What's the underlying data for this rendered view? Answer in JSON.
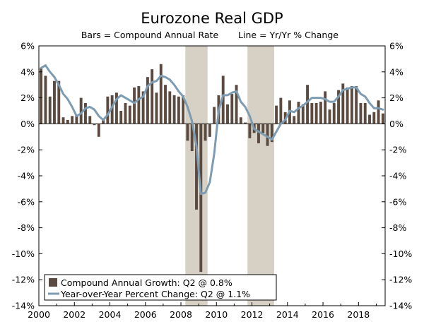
{
  "chart_data": {
    "type": "bar",
    "title": "Eurozone Real GDP",
    "subtitle_left": "Bars = Compound Annual Rate",
    "subtitle_right": "Line = Yr/Yr % Change",
    "ylim": [
      -14,
      6
    ],
    "y_ticks": [
      "6%",
      "4%",
      "2%",
      "0%",
      "-2%",
      "-4%",
      "-6%",
      "-8%",
      "-10%",
      "-12%",
      "-14%"
    ],
    "y_tick_values": [
      6,
      4,
      2,
      0,
      -2,
      -4,
      -6,
      -8,
      -10,
      -12,
      -14
    ],
    "x_ticks": [
      "2000",
      "2002",
      "2004",
      "2006",
      "2008",
      "2010",
      "2012",
      "2014",
      "2016",
      "2018"
    ],
    "x_tick_values": [
      2000,
      2002,
      2004,
      2006,
      2008,
      2010,
      2012,
      2014,
      2016,
      2018
    ],
    "xlim": [
      2000,
      2019.5
    ],
    "recessions": [
      [
        2008.25,
        2009.5
      ],
      [
        2011.75,
        2013.25
      ]
    ],
    "colors": {
      "bars": "#5a4a40",
      "line": "#7d9cb1",
      "recession": "#d6d1c4"
    },
    "legend": {
      "placement": "bottom-left",
      "bars_label": "Compound Annual Growth: Q2 @ 0.8%",
      "line_label": "Year-over-Year Percent Change: Q2 @ 1.1%"
    },
    "series": [
      {
        "name": "Compound Annual Growth: Q2 @ 0.8%",
        "kind": "bar",
        "x": [
          2000.0,
          2000.25,
          2000.5,
          2000.75,
          2001.0,
          2001.25,
          2001.5,
          2001.75,
          2002.0,
          2002.25,
          2002.5,
          2002.75,
          2003.0,
          2003.25,
          2003.5,
          2003.75,
          2004.0,
          2004.25,
          2004.5,
          2004.75,
          2005.0,
          2005.25,
          2005.5,
          2005.75,
          2006.0,
          2006.25,
          2006.5,
          2006.75,
          2007.0,
          2007.25,
          2007.5,
          2007.75,
          2008.0,
          2008.25,
          2008.5,
          2008.75,
          2009.0,
          2009.25,
          2009.5,
          2009.75,
          2010.0,
          2010.25,
          2010.5,
          2010.75,
          2011.0,
          2011.25,
          2011.5,
          2011.75,
          2012.0,
          2012.25,
          2012.5,
          2012.75,
          2013.0,
          2013.25,
          2013.5,
          2013.75,
          2014.0,
          2014.25,
          2014.5,
          2014.75,
          2015.0,
          2015.25,
          2015.5,
          2015.75,
          2016.0,
          2016.25,
          2016.5,
          2016.75,
          2017.0,
          2017.25,
          2017.5,
          2017.75,
          2018.0,
          2018.25,
          2018.5,
          2018.75,
          2019.0,
          2019.25
        ],
        "values": [
          4.3,
          3.7,
          2.1,
          3.3,
          3.3,
          0.5,
          0.3,
          0.6,
          0.7,
          2.0,
          1.6,
          0.6,
          -0.1,
          -1.0,
          0.3,
          2.1,
          2.2,
          2.4,
          1.0,
          1.6,
          1.4,
          2.8,
          2.9,
          2.5,
          3.6,
          4.2,
          2.4,
          4.6,
          3.0,
          2.5,
          2.2,
          2.1,
          2.2,
          -1.3,
          -2.1,
          -6.6,
          -11.4,
          -1.3,
          -1.0,
          1.3,
          2.2,
          3.7,
          1.5,
          2.3,
          3.0,
          0.5,
          0.1,
          -1.1,
          -0.7,
          -1.5,
          -0.7,
          -1.7,
          -1.4,
          1.4,
          2.0,
          0.9,
          1.8,
          0.6,
          1.7,
          1.5,
          3.0,
          1.6,
          1.6,
          1.7,
          2.5,
          1.1,
          1.6,
          2.6,
          3.1,
          2.8,
          2.9,
          2.9,
          1.6,
          1.6,
          0.7,
          0.9,
          1.8,
          0.8
        ]
      },
      {
        "name": "Year-over-Year Percent Change: Q2 @ 1.1%",
        "kind": "line",
        "x": [
          2000.0,
          2000.25,
          2000.5,
          2000.75,
          2001.0,
          2001.25,
          2001.5,
          2001.75,
          2002.0,
          2002.25,
          2002.5,
          2002.75,
          2003.0,
          2003.25,
          2003.5,
          2003.75,
          2004.0,
          2004.25,
          2004.5,
          2004.75,
          2005.0,
          2005.25,
          2005.5,
          2005.75,
          2006.0,
          2006.25,
          2006.5,
          2006.75,
          2007.0,
          2007.25,
          2007.5,
          2007.75,
          2008.0,
          2008.25,
          2008.5,
          2008.75,
          2009.0,
          2009.25,
          2009.5,
          2009.75,
          2010.0,
          2010.25,
          2010.5,
          2010.75,
          2011.0,
          2011.25,
          2011.5,
          2011.75,
          2012.0,
          2012.25,
          2012.5,
          2012.75,
          2013.0,
          2013.25,
          2013.5,
          2013.75,
          2014.0,
          2014.25,
          2014.5,
          2014.75,
          2015.0,
          2015.25,
          2015.5,
          2015.75,
          2016.0,
          2016.25,
          2016.5,
          2016.75,
          2017.0,
          2017.25,
          2017.5,
          2017.75,
          2018.0,
          2018.25,
          2018.5,
          2018.75,
          2019.0,
          2019.25
        ],
        "values": [
          4.3,
          4.5,
          4.0,
          3.6,
          3.0,
          2.3,
          1.9,
          1.3,
          0.6,
          0.8,
          1.2,
          1.3,
          1.1,
          0.6,
          0.3,
          0.7,
          1.3,
          1.9,
          2.2,
          2.0,
          1.8,
          1.6,
          1.9,
          2.1,
          2.9,
          3.2,
          3.3,
          3.7,
          3.6,
          3.4,
          3.0,
          2.5,
          2.1,
          1.3,
          0.2,
          -1.7,
          -5.4,
          -5.3,
          -4.5,
          -2.3,
          1.0,
          2.2,
          2.2,
          2.4,
          2.5,
          1.7,
          1.3,
          0.6,
          -0.4,
          -0.6,
          -0.8,
          -1.0,
          -1.2,
          -0.6,
          0.0,
          0.3,
          1.0,
          0.9,
          1.2,
          1.4,
          1.7,
          2.0,
          2.0,
          2.0,
          1.9,
          1.7,
          1.7,
          2.1,
          2.6,
          2.7,
          2.8,
          2.8,
          2.3,
          2.1,
          1.6,
          1.2,
          1.2,
          1.1
        ]
      }
    ]
  }
}
